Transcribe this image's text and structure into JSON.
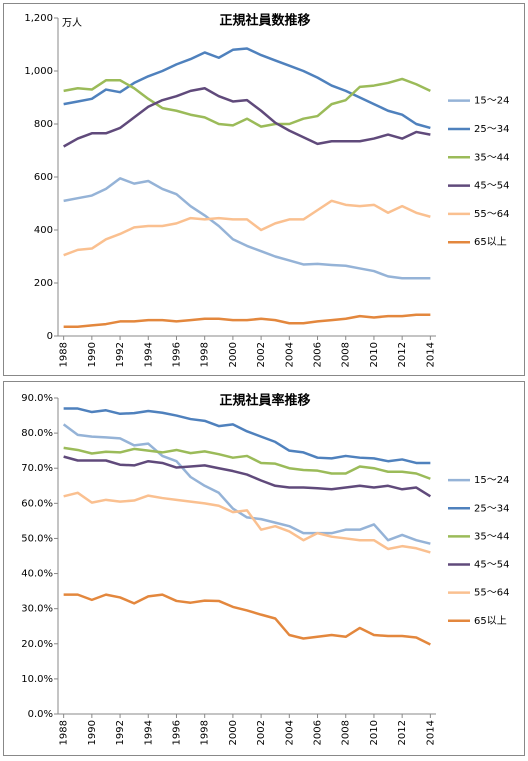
{
  "chart_data": [
    {
      "type": "line",
      "title": "正規社員数推移",
      "unit": "万人",
      "x": [
        1988,
        1989,
        1990,
        1991,
        1992,
        1993,
        1994,
        1995,
        1996,
        1997,
        1998,
        1999,
        2000,
        2001,
        2002,
        2003,
        2004,
        2005,
        2006,
        2007,
        2008,
        2009,
        2010,
        2011,
        2012,
        2013,
        2014
      ],
      "xlim": [
        1987.6,
        2014.4
      ],
      "xticks": [
        1988,
        1990,
        1992,
        1994,
        1996,
        1998,
        2000,
        2002,
        2004,
        2006,
        2008,
        2010,
        2012,
        2014
      ],
      "ylim": [
        0,
        1200
      ],
      "yticks": [
        0,
        200,
        400,
        600,
        800,
        {
          "value": 1000,
          "label": "1,000"
        },
        {
          "value": 1200,
          "label": "1,200"
        }
      ],
      "grid": false,
      "legend": "right",
      "series": [
        {
          "name": "15～24",
          "color": "#95b3d7",
          "values": [
            510,
            520,
            530,
            555,
            595,
            575,
            585,
            555,
            535,
            490,
            455,
            415,
            365,
            340,
            320,
            300,
            285,
            270,
            272,
            268,
            265,
            255,
            245,
            225,
            218,
            218,
            218
          ]
        },
        {
          "name": "25～34",
          "color": "#4f81bd",
          "values": [
            875,
            885,
            895,
            930,
            920,
            955,
            980,
            1000,
            1025,
            1045,
            1070,
            1050,
            1080,
            1085,
            1060,
            1040,
            1020,
            1000,
            975,
            945,
            925,
            900,
            875,
            850,
            835,
            800,
            785
          ]
        },
        {
          "name": "35～44",
          "color": "#9bbb59",
          "values": [
            925,
            935,
            930,
            965,
            965,
            935,
            895,
            860,
            850,
            835,
            825,
            800,
            795,
            820,
            790,
            800,
            800,
            820,
            830,
            875,
            890,
            940,
            945,
            955,
            970,
            950,
            925
          ]
        },
        {
          "name": "45～54",
          "color": "#604a7b",
          "values": [
            715,
            745,
            765,
            765,
            785,
            825,
            865,
            890,
            905,
            925,
            935,
            905,
            885,
            890,
            850,
            805,
            775,
            750,
            725,
            735,
            735,
            735,
            745,
            760,
            745,
            770,
            760
          ]
        },
        {
          "name": "55～64",
          "color": "#fac090",
          "values": [
            305,
            325,
            330,
            365,
            385,
            410,
            415,
            415,
            425,
            445,
            440,
            445,
            440,
            440,
            400,
            425,
            440,
            440,
            475,
            510,
            495,
            490,
            495,
            465,
            490,
            465,
            450
          ]
        },
        {
          "name": "65以上",
          "color": "#e3873d",
          "values": [
            35,
            35,
            40,
            45,
            55,
            55,
            60,
            60,
            55,
            60,
            65,
            65,
            60,
            60,
            65,
            60,
            48,
            48,
            55,
            60,
            65,
            75,
            70,
            75,
            75,
            80,
            80
          ]
        }
      ]
    },
    {
      "type": "line",
      "title": "正規社員率推移",
      "x": [
        1988,
        1989,
        1990,
        1991,
        1992,
        1993,
        1994,
        1995,
        1996,
        1997,
        1998,
        1999,
        2000,
        2001,
        2002,
        2003,
        2004,
        2005,
        2006,
        2007,
        2008,
        2009,
        2010,
        2011,
        2012,
        2013,
        2014
      ],
      "xlim": [
        1987.6,
        2014.4
      ],
      "xticks": [
        1988,
        1990,
        1992,
        1994,
        1996,
        1998,
        2000,
        2002,
        2004,
        2006,
        2008,
        2010,
        2012,
        2014
      ],
      "ylim": [
        0,
        90
      ],
      "yticks": [
        {
          "value": 0,
          "label": "0.0%"
        },
        {
          "value": 10,
          "label": "10.0%"
        },
        {
          "value": 20,
          "label": "20.0%"
        },
        {
          "value": 30,
          "label": "30.0%"
        },
        {
          "value": 40,
          "label": "40.0%"
        },
        {
          "value": 50,
          "label": "50.0%"
        },
        {
          "value": 60,
          "label": "60.0%"
        },
        {
          "value": 70,
          "label": "70.0%"
        },
        {
          "value": 80,
          "label": "80.0%"
        },
        {
          "value": 90,
          "label": "90.0%"
        }
      ],
      "grid": false,
      "legend": "right",
      "series": [
        {
          "name": "15～24",
          "color": "#95b3d7",
          "values": [
            82.5,
            79.5,
            79,
            78.8,
            78.5,
            76.5,
            77,
            73.5,
            72,
            67.5,
            65,
            63,
            58.5,
            56,
            55.5,
            54.5,
            53.5,
            51.5,
            51.5,
            51.5,
            52.5,
            52.5,
            54,
            49.5,
            51,
            49.5,
            48.5
          ]
        },
        {
          "name": "25～34",
          "color": "#4f81bd",
          "values": [
            87,
            87,
            86,
            86.5,
            85.5,
            85.7,
            86.3,
            85.8,
            85,
            84,
            83.5,
            82,
            82.5,
            80.5,
            79,
            77.5,
            75,
            74.5,
            73,
            72.8,
            73.5,
            73,
            72.8,
            72,
            72.5,
            71.5,
            71.5
          ]
        },
        {
          "name": "35～44",
          "color": "#9bbb59",
          "values": [
            75.8,
            75.2,
            74.2,
            74.7,
            74.5,
            75.5,
            75,
            74.5,
            75.2,
            74.3,
            74.8,
            74,
            73,
            73.5,
            71.5,
            71.3,
            70,
            69.5,
            69.3,
            68.5,
            68.5,
            70.5,
            70,
            69,
            69,
            68.5,
            67
          ]
        },
        {
          "name": "45～54",
          "color": "#604a7b",
          "values": [
            73.3,
            72.2,
            72.2,
            72.2,
            71,
            70.8,
            72,
            71.5,
            70.2,
            70.5,
            70.8,
            70,
            69.2,
            68.2,
            66.5,
            65,
            64.5,
            64.5,
            64.3,
            64,
            64.5,
            65,
            64.5,
            65,
            64,
            64.5,
            62
          ]
        },
        {
          "name": "55～64",
          "color": "#fac090",
          "values": [
            62,
            63,
            60.2,
            61,
            60.5,
            60.8,
            62.2,
            61.5,
            61,
            60.5,
            60,
            59.3,
            57.5,
            58,
            52.5,
            53.5,
            52,
            49.5,
            51.5,
            50.5,
            50,
            49.5,
            49.5,
            47,
            47.8,
            47.2,
            46
          ]
        },
        {
          "name": "65以上",
          "color": "#e3873d",
          "values": [
            34,
            34,
            32.5,
            34,
            33.2,
            31.5,
            33.5,
            34,
            32.2,
            31.7,
            32.3,
            32.2,
            30.5,
            29.5,
            28.3,
            27.2,
            22.5,
            21.5,
            22,
            22.5,
            22,
            24.5,
            22.5,
            22.2,
            22.2,
            21.8,
            19.8
          ]
        }
      ]
    }
  ]
}
